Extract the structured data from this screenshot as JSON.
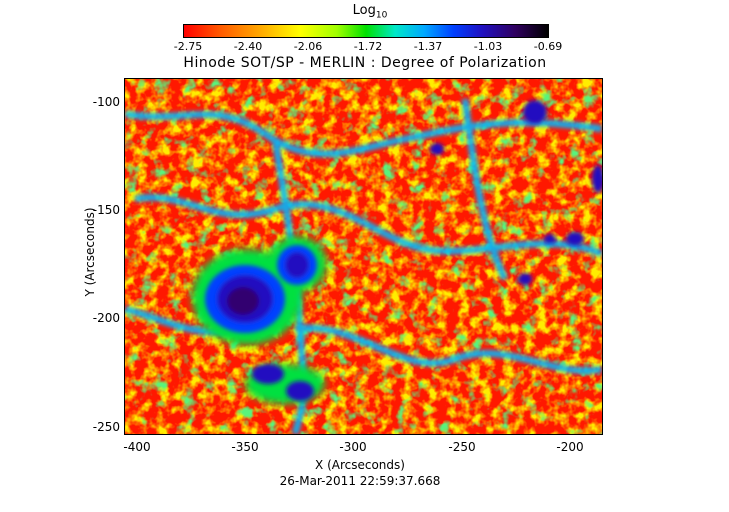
{
  "colorbar": {
    "title": "Log",
    "title_sub": "10",
    "ticks": [
      "-2.75",
      "-2.40",
      "-2.06",
      "-1.72",
      "-1.37",
      "-1.03",
      "-0.69"
    ]
  },
  "plot": {
    "title": "Hinode SOT/SP - MERLIN : Degree of Polarization",
    "xlabel": "X (Arcseconds)",
    "ylabel": "Y (Arcseconds)",
    "xticks": [
      "-400",
      "-350",
      "-300",
      "-250",
      "-200"
    ],
    "yticks": [
      "-100",
      "-150",
      "-200",
      "-250"
    ]
  },
  "timestamp": "26-Mar-2011 22:59:37.668",
  "colors": {
    "low": "#ff2000",
    "mid_low": "#ffd000",
    "mid": "#00e000",
    "mid_high": "#00b0ff",
    "high": "#2010c0",
    "max": "#300070"
  }
}
